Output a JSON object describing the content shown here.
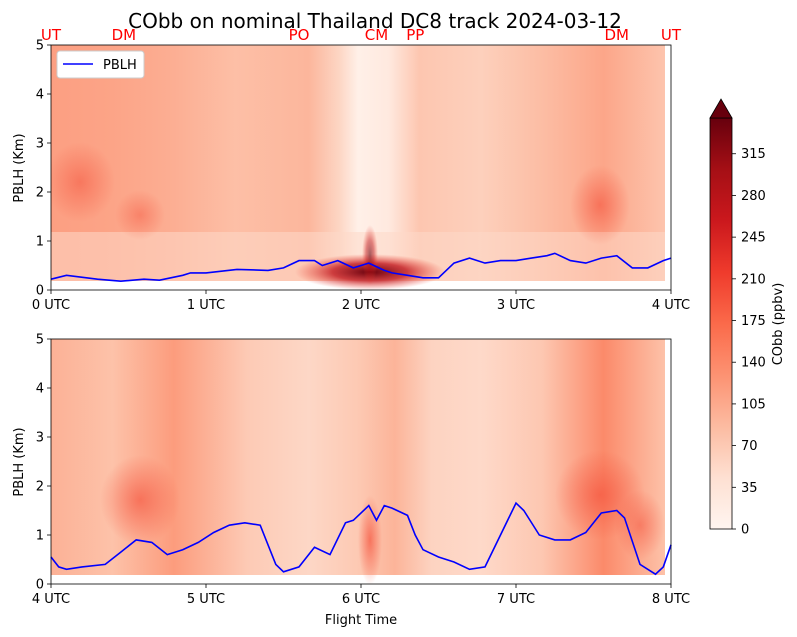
{
  "title": "CObb on nominal Thailand DC8 track 2024-03-12",
  "xlabel": "Flight Time",
  "colorbar": {
    "label": "CObb (ppbv)",
    "ticks": [
      0,
      35,
      70,
      105,
      140,
      175,
      210,
      245,
      280,
      315
    ],
    "range": [
      0,
      345
    ],
    "extend": "max",
    "colormap": "Reds"
  },
  "colors": {
    "pblh_line": "#0000ff",
    "location_labels": "#ff0000"
  },
  "chart_data": [
    {
      "type": "heatmap",
      "panel": "top",
      "ylabel": "PBLH (Km)",
      "ylim": [
        0,
        5
      ],
      "yticks": [
        "0",
        "1",
        "2",
        "3",
        "4",
        "5"
      ],
      "xlim": [
        0,
        4
      ],
      "xticks": [
        {
          "value": 0,
          "label": "0 UTC"
        },
        {
          "value": 1,
          "label": "1 UTC"
        },
        {
          "value": 2,
          "label": "2 UTC"
        },
        {
          "value": 3,
          "label": "3 UTC"
        },
        {
          "value": 4,
          "label": "4 UTC"
        }
      ],
      "legend": {
        "label": "PBLH",
        "placement": "upper-left"
      },
      "location_labels": [
        {
          "label": "UT",
          "x": 0.0
        },
        {
          "label": "DM",
          "x": 0.47
        },
        {
          "label": "PO",
          "x": 1.6
        },
        {
          "label": "CM",
          "x": 2.1
        },
        {
          "label": "PP",
          "x": 2.35
        },
        {
          "label": "DM",
          "x": 3.65
        },
        {
          "label": "UT",
          "x": 4.0
        }
      ],
      "series": [
        {
          "name": "PBLH",
          "x": [
            0.0,
            0.1,
            0.3,
            0.45,
            0.6,
            0.7,
            0.85,
            0.9,
            1.0,
            1.2,
            1.4,
            1.5,
            1.6,
            1.7,
            1.75,
            1.85,
            1.95,
            2.05,
            2.15,
            2.2,
            2.3,
            2.4,
            2.5,
            2.6,
            2.7,
            2.8,
            2.9,
            3.0,
            3.1,
            3.2,
            3.25,
            3.35,
            3.45,
            3.55,
            3.65,
            3.75,
            3.85,
            3.95,
            4.0
          ],
          "y": [
            0.22,
            0.3,
            0.22,
            0.18,
            0.22,
            0.2,
            0.3,
            0.35,
            0.35,
            0.42,
            0.4,
            0.45,
            0.6,
            0.6,
            0.5,
            0.6,
            0.45,
            0.55,
            0.4,
            0.35,
            0.3,
            0.25,
            0.25,
            0.55,
            0.65,
            0.55,
            0.6,
            0.6,
            0.65,
            0.7,
            0.75,
            0.6,
            0.55,
            0.65,
            0.7,
            0.45,
            0.45,
            0.6,
            0.65
          ]
        }
      ]
    },
    {
      "type": "heatmap",
      "panel": "bottom",
      "ylabel": "PBLH (Km)",
      "ylim": [
        0,
        5
      ],
      "yticks": [
        "0",
        "1",
        "2",
        "3",
        "4",
        "5"
      ],
      "xlim": [
        4,
        8
      ],
      "xticks": [
        {
          "value": 4,
          "label": "4 UTC"
        },
        {
          "value": 5,
          "label": "5 UTC"
        },
        {
          "value": 6,
          "label": "6 UTC"
        },
        {
          "value": 7,
          "label": "7 UTC"
        },
        {
          "value": 8,
          "label": "8 UTC"
        }
      ],
      "series": [
        {
          "x": [
            4.0,
            4.05,
            4.1,
            4.2,
            4.35,
            4.45,
            4.55,
            4.65,
            4.75,
            4.85,
            4.95,
            5.05,
            5.15,
            5.25,
            5.35,
            5.45,
            5.5,
            5.6,
            5.7,
            5.8,
            5.9,
            5.95,
            6.05,
            6.1,
            6.15,
            6.2,
            6.3,
            6.35,
            6.4,
            6.5,
            6.6,
            6.7,
            6.8,
            6.9,
            7.0,
            7.05,
            7.15,
            7.25,
            7.35,
            7.45,
            7.55,
            7.65,
            7.7,
            7.8,
            7.9,
            7.95,
            8.0
          ],
          "y": [
            0.55,
            0.35,
            0.3,
            0.35,
            0.4,
            0.65,
            0.9,
            0.85,
            0.6,
            0.7,
            0.85,
            1.05,
            1.2,
            1.25,
            1.2,
            0.4,
            0.25,
            0.35,
            0.75,
            0.6,
            1.25,
            1.3,
            1.6,
            1.3,
            1.6,
            1.55,
            1.4,
            1.0,
            0.7,
            0.55,
            0.45,
            0.3,
            0.35,
            1.0,
            1.65,
            1.5,
            1.0,
            0.9,
            0.9,
            1.05,
            1.45,
            1.5,
            1.35,
            0.4,
            0.2,
            0.35,
            0.8
          ]
        }
      ]
    }
  ]
}
